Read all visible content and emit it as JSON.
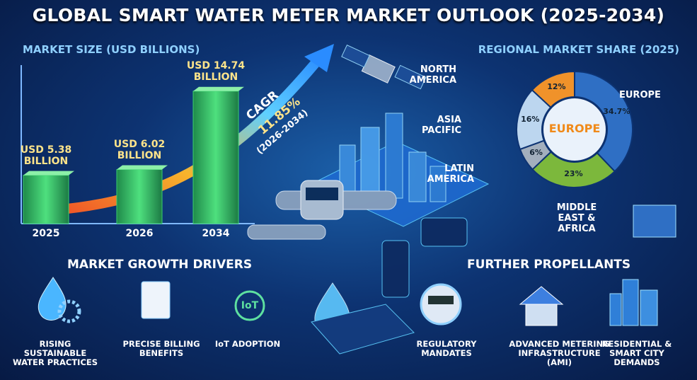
{
  "title": "GLOBAL SMART WATER METER MARKET OUTLOOK (2025-2034)",
  "chart_data": [
    {
      "type": "bar",
      "title": "MARKET SIZE (USD BILLIONS)",
      "categories": [
        "2025",
        "2026",
        "2034"
      ],
      "values": [
        5.38,
        6.02,
        14.74
      ],
      "value_labels": [
        "USD 5.38 BILLION",
        "USD 6.02 BILLION",
        "USD 14.74 BILLION"
      ],
      "color": "#3ccf6e",
      "annotations": [
        "CAGR",
        "11.85%",
        "(2026-2034)"
      ]
    },
    {
      "type": "donut",
      "title": "REGIONAL MARKET SHARE (2025)",
      "categories": [
        "EUROPE",
        "MIDDLE EAST & AFRICA",
        "LATIN AMERICA",
        "ASIA PACIFIC",
        "NORTH AMERICA"
      ],
      "values": [
        34.7,
        23,
        6,
        16,
        12
      ],
      "value_labels": [
        "34.7%",
        "23%",
        "6%",
        "16%",
        "12%"
      ],
      "colors": [
        "#2f6fc4",
        "#7cb83c",
        "#a3afbd",
        "#bcd6ef",
        "#f0922a"
      ],
      "center_label": "EUROPE"
    }
  ],
  "drivers": {
    "title": "MARKET GROWTH DRIVERS",
    "items": [
      {
        "label": "RISING SUSTAINABLE WATER PRACTICES"
      },
      {
        "label": "PRECISE BILLING BENEFITS"
      },
      {
        "label": "IoT ADOPTION",
        "icon_text": "IoT"
      }
    ]
  },
  "propellants": {
    "title": "FURTHER PROPELLANTS",
    "items": [
      {
        "label": "REGULATORY MANDATES"
      },
      {
        "label": "ADVANCED METERING INFRASTRUCTURE (AMI)"
      },
      {
        "label": "RESIDENTIAL & SMART CITY DEMANDS"
      }
    ]
  }
}
